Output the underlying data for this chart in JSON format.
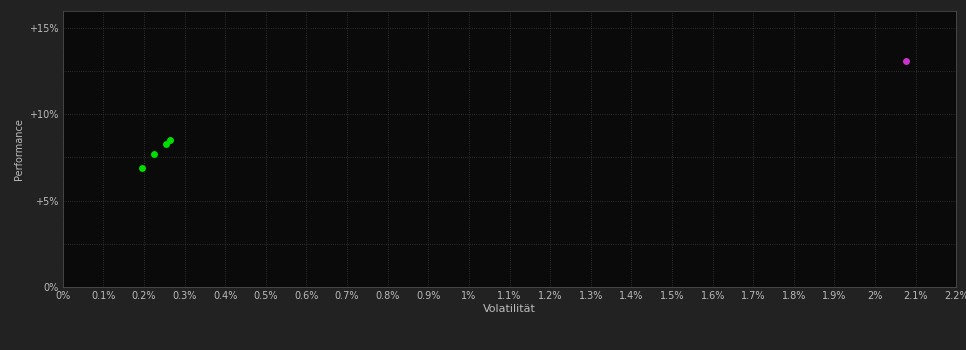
{
  "background_color": "#222222",
  "plot_bg_color": "#0a0a0a",
  "grid_color": "#3a3a3a",
  "grid_style": ":",
  "xlabel": "Volatilität",
  "ylabel": "Performance",
  "xlabel_color": "#bbbbbb",
  "ylabel_color": "#bbbbbb",
  "tick_color": "#bbbbbb",
  "xlim": [
    0.0,
    0.022
  ],
  "ylim": [
    0.0,
    0.16
  ],
  "xticks": [
    0.0,
    0.001,
    0.002,
    0.003,
    0.004,
    0.005,
    0.006,
    0.007,
    0.008,
    0.009,
    0.01,
    0.011,
    0.012,
    0.013,
    0.014,
    0.015,
    0.016,
    0.017,
    0.018,
    0.019,
    0.02,
    0.021,
    0.022
  ],
  "xtick_labels": [
    "0%",
    "0.1%",
    "0.2%",
    "0.3%",
    "0.4%",
    "0.5%",
    "0.6%",
    "0.7%",
    "0.8%",
    "0.9%",
    "1%",
    "1.1%",
    "1.2%",
    "1.3%",
    "1.4%",
    "1.5%",
    "1.6%",
    "1.7%",
    "1.8%",
    "1.9%",
    "2%",
    "2.1%",
    "2.2%"
  ],
  "yticks": [
    0.0,
    0.025,
    0.05,
    0.075,
    0.1,
    0.125,
    0.15
  ],
  "ytick_labels": [
    "0%",
    "",
    "+5%",
    "",
    "+10%",
    "",
    "+15%"
  ],
  "green_points": [
    [
      0.00195,
      0.069
    ],
    [
      0.00225,
      0.077
    ],
    [
      0.00255,
      0.083
    ],
    [
      0.00265,
      0.085
    ]
  ],
  "magenta_points": [
    [
      0.02075,
      0.131
    ]
  ],
  "green_color": "#00dd00",
  "magenta_color": "#cc33cc",
  "marker_size": 5,
  "font_size_ticks": 7,
  "font_size_labels": 8,
  "font_size_ylabel": 7
}
